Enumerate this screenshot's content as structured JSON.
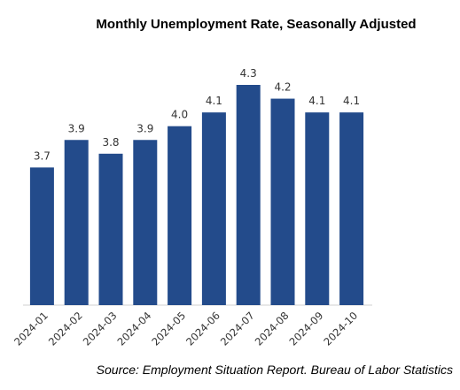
{
  "chart_data": {
    "type": "bar",
    "title": "Monthly Unemployment Rate, Seasonally Adjusted",
    "source": "Source: Employment Situation Report. Bureau of Labor Statistics",
    "categories": [
      "2024-01",
      "2024-02",
      "2024-03",
      "2024-04",
      "2024-05",
      "2024-06",
      "2024-07",
      "2024-08",
      "2024-09",
      "2024-10"
    ],
    "values": [
      3.7,
      3.9,
      3.8,
      3.9,
      4.0,
      4.1,
      4.3,
      4.2,
      4.1,
      4.1
    ],
    "data_labels": [
      "3.7",
      "3.9",
      "3.8",
      "3.9",
      "4.0",
      "4.1",
      "4.3",
      "4.2",
      "4.1",
      "4.1"
    ],
    "xlabel": "",
    "ylabel": "",
    "ylim": [
      2.7,
      4.3
    ],
    "grid": false,
    "legend": "none",
    "bar_color": "#234B8B"
  }
}
